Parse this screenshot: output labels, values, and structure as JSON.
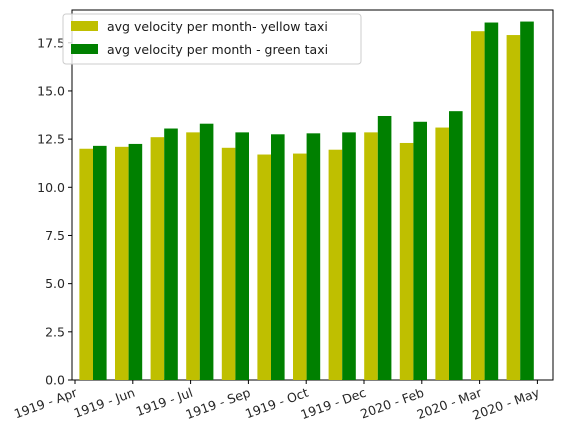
{
  "chart_data": {
    "type": "bar",
    "x_tick_labels": [
      "1919 - Apr",
      "1919 - Jun",
      "1919 - Jul",
      "1919 - Sep",
      "1919 - Oct",
      "1919 - Dec",
      "2020 - Feb",
      "2020 - Mar",
      "2020 - May"
    ],
    "series": [
      {
        "name": "avg velocity per month- yellow taxi",
        "color": "#bfbf00",
        "values": [
          12.0,
          12.1,
          12.6,
          12.85,
          12.05,
          11.7,
          11.75,
          11.95,
          12.85,
          12.3,
          13.1,
          18.1,
          17.9
        ]
      },
      {
        "name": "avg velocity per month - green taxi",
        "color": "#008000",
        "values": [
          12.15,
          12.25,
          13.05,
          13.3,
          12.85,
          12.75,
          12.8,
          12.85,
          13.7,
          13.4,
          13.95,
          18.55,
          18.6
        ]
      }
    ],
    "ylim": [
      0,
      19.2
    ],
    "y_ticks": [
      "0.0",
      "2.5",
      "5.0",
      "7.5",
      "10.0",
      "12.5",
      "15.0",
      "17.5"
    ],
    "legend_position": "upper-left",
    "grid": false
  }
}
